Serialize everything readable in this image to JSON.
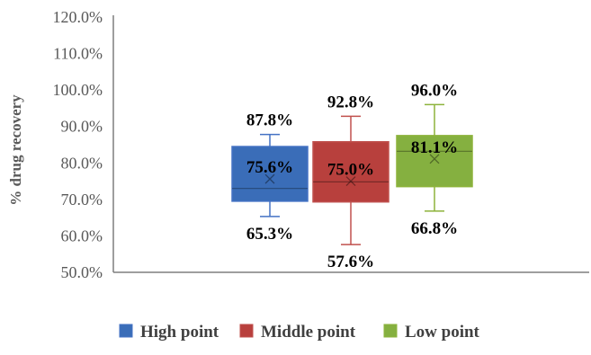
{
  "chart_data": {
    "type": "box",
    "ylabel": "% drug recovery",
    "ylim": [
      50,
      120
    ],
    "y_ticks": [
      "50.0%",
      "60.0%",
      "70.0%",
      "80.0%",
      "90.0%",
      "100.0%",
      "110.0%",
      "120.0%"
    ],
    "grid": false,
    "legend_position": "bottom",
    "series": [
      {
        "name": "High point",
        "color": "#4472C4",
        "fill": "#3A6DB8",
        "min": 65.3,
        "q1": 69.5,
        "median": 73.0,
        "q3": 84.5,
        "max": 87.8,
        "mean": 75.6,
        "labels": {
          "max": "87.8%",
          "mean": "75.6%",
          "min": "65.3%"
        }
      },
      {
        "name": "Middle point",
        "color": "#C0504D",
        "fill": "#B8403D",
        "min": 57.6,
        "q1": 69.3,
        "median": 74.8,
        "q3": 85.8,
        "max": 92.8,
        "mean": 75.0,
        "labels": {
          "max": "92.8%",
          "mean": "75.0%",
          "min": "57.6%"
        }
      },
      {
        "name": "Low point",
        "color": "#8DB33B",
        "fill": "#85B040",
        "min": 66.8,
        "q1": 73.5,
        "median": 83.2,
        "q3": 87.5,
        "max": 96.0,
        "mean": 81.1,
        "labels": {
          "max": "96.0%",
          "mean": "81.1%",
          "min": "66.8%"
        }
      }
    ]
  }
}
